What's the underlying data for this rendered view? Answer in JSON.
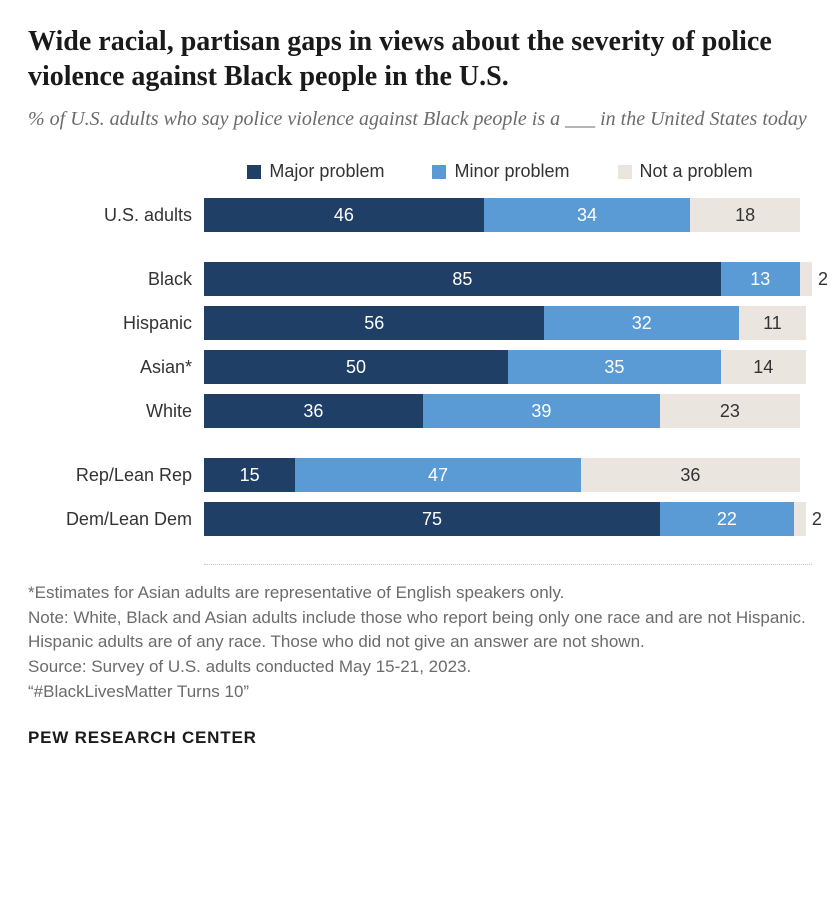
{
  "title": "Wide racial, partisan gaps in views about the severity of police violence against Black people in the U.S.",
  "subtitle": "% of U.S. adults who say police violence against Black people is a ___ in the United States today",
  "legend": [
    {
      "label": "Major problem",
      "color": "#1f3f66"
    },
    {
      "label": "Minor problem",
      "color": "#5a9bd5"
    },
    {
      "label": "Not a problem",
      "color": "#eae6df"
    }
  ],
  "colors": {
    "major": "#1f3f66",
    "minor": "#5a9bd5",
    "not": "#eae6df",
    "major_text": "#ffffff",
    "minor_text": "#ffffff",
    "not_text": "#333333"
  },
  "chart": {
    "bar_max_pct": 100,
    "groups": [
      {
        "rows": [
          {
            "label": "U.S. adults",
            "major": 46,
            "minor": 34,
            "not": 18,
            "not_outside": false
          }
        ]
      },
      {
        "rows": [
          {
            "label": "Black",
            "major": 85,
            "minor": 13,
            "not": 2,
            "not_outside": true
          },
          {
            "label": "Hispanic",
            "major": 56,
            "minor": 32,
            "not": 11,
            "not_outside": false
          },
          {
            "label": "Asian*",
            "major": 50,
            "minor": 35,
            "not": 14,
            "not_outside": false
          },
          {
            "label": "White",
            "major": 36,
            "minor": 39,
            "not": 23,
            "not_outside": false
          }
        ]
      },
      {
        "rows": [
          {
            "label": "Rep/Lean Rep",
            "major": 15,
            "minor": 47,
            "not": 36,
            "not_outside": false
          },
          {
            "label": "Dem/Lean Dem",
            "major": 75,
            "minor": 22,
            "not": 2,
            "not_outside": true
          }
        ]
      }
    ]
  },
  "notes": [
    "*Estimates for Asian adults are representative of English speakers only.",
    "Note: White, Black and Asian adults include those who report being only one race and are not Hispanic. Hispanic adults are of any race. Those who did not give an answer are not shown.",
    "Source: Survey of U.S. adults conducted May 15-21, 2023.",
    "“#BlackLivesMatter Turns 10”"
  ],
  "brand": "PEW RESEARCH CENTER"
}
